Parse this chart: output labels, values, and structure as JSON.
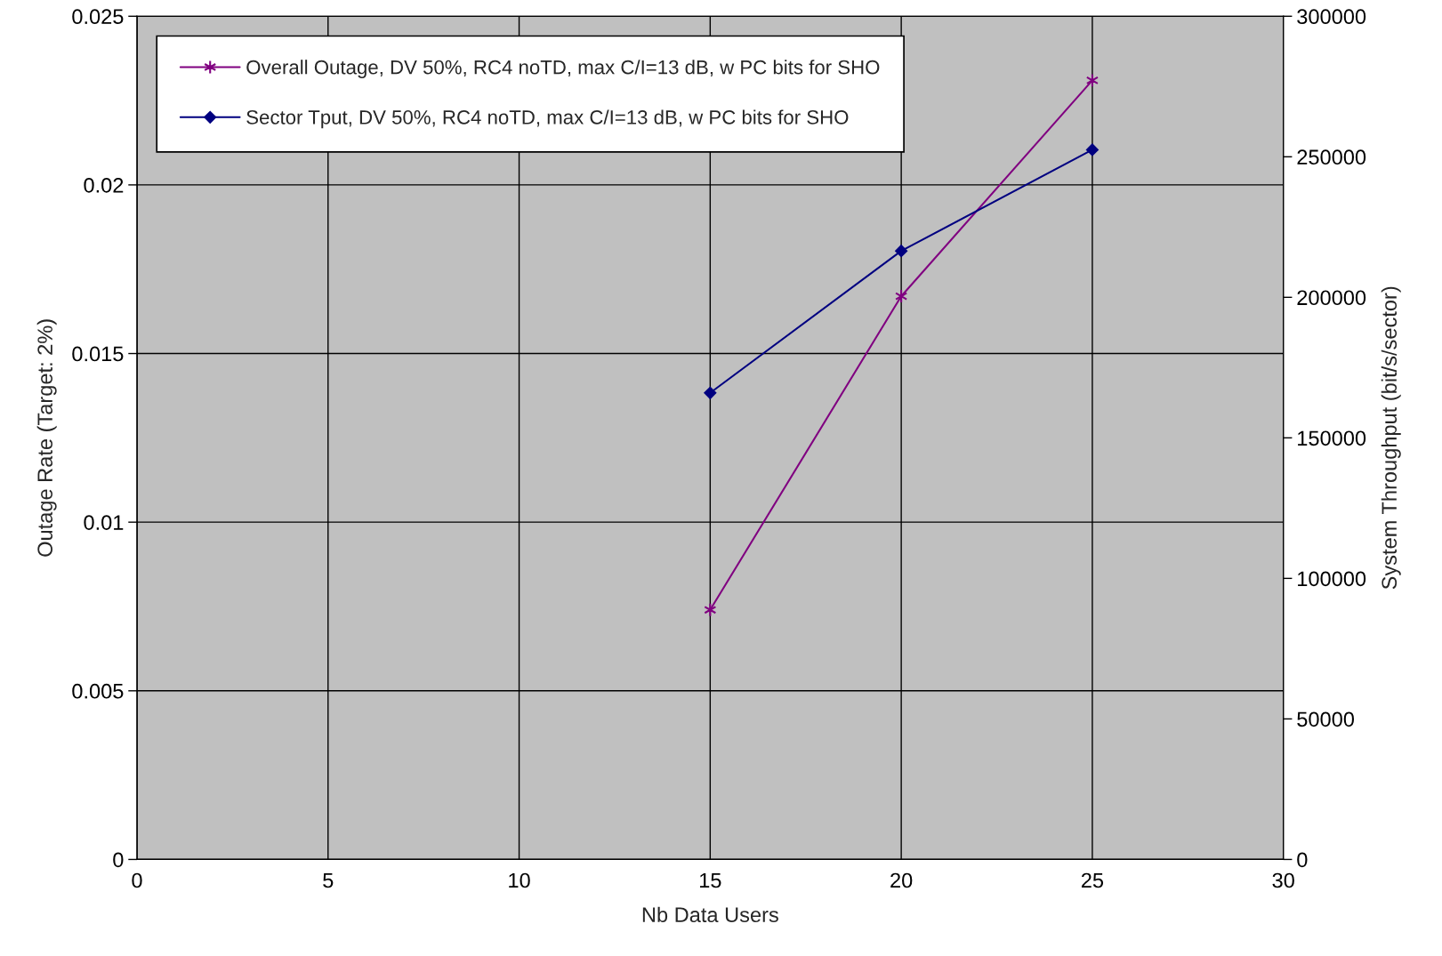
{
  "chart_data": {
    "type": "line",
    "xlabel": "Nb Data Users",
    "ylabel": "Outage Rate (Target: 2%)",
    "y2label": "System Throughput (bit/s/sector)",
    "xlim": [
      0,
      30
    ],
    "xticks": [
      0,
      5,
      10,
      15,
      20,
      25,
      30
    ],
    "ylim": [
      0,
      0.025
    ],
    "yticks": [
      0,
      0.005,
      0.01,
      0.015,
      0.02,
      0.025
    ],
    "y2lim": [
      0,
      300000
    ],
    "y2ticks": [
      0,
      50000,
      100000,
      150000,
      200000,
      250000,
      300000
    ],
    "grid": true,
    "legend": "top left",
    "series": [
      {
        "name": "Overall Outage, DV 50%, RC4 noTD, max C/I=13 dB, w PC bits for SHO",
        "color": "#800080",
        "marker": "cross",
        "x": [
          15,
          20,
          25
        ],
        "values": [
          0.0074,
          0.0167,
          0.0231
        ]
      },
      {
        "name": "Sector Tput, DV 50%, RC4 noTD, max C/I=13 dB, w PC bits for SHO",
        "color": "#000080",
        "marker": "diamond",
        "axis": "y2",
        "x": [
          15,
          20,
          25
        ],
        "values": [
          166000,
          216500,
          252500
        ]
      }
    ]
  }
}
